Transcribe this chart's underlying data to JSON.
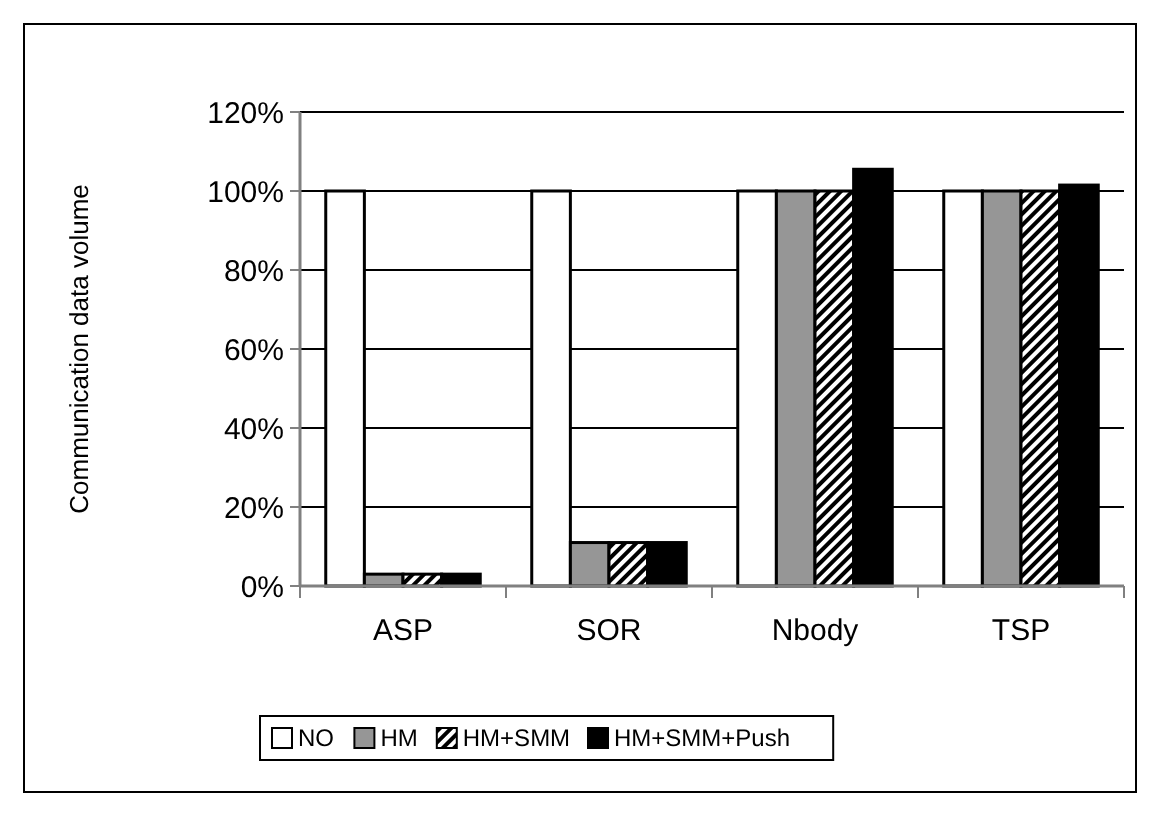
{
  "chart_data": {
    "type": "bar",
    "ylabel": "Communication data volume",
    "categories": [
      "ASP",
      "SOR",
      "Nbody",
      "TSP"
    ],
    "series": [
      {
        "name": "NO",
        "color": "#ffffff",
        "values": [
          100,
          100,
          100,
          100
        ]
      },
      {
        "name": "HM",
        "color": "#969696",
        "values": [
          3,
          11,
          100,
          100
        ]
      },
      {
        "name": "HM+SMM",
        "color": "#000000",
        "values": [
          3,
          11,
          100,
          100
        ]
      },
      {
        "name": "HM+SMM+Push",
        "color": "#000000",
        "values": [
          3,
          11,
          105.5,
          101.5
        ]
      }
    ],
    "ylim": [
      0,
      120
    ],
    "yticks": [
      {
        "value": 0,
        "label": "0%"
      },
      {
        "value": 20,
        "label": "20%"
      },
      {
        "value": 40,
        "label": "40%"
      },
      {
        "value": 60,
        "label": "60%"
      },
      {
        "value": 80,
        "label": "80%"
      },
      {
        "value": 100,
        "label": "100%"
      },
      {
        "value": 120,
        "label": "120%"
      }
    ],
    "grid": "y",
    "legend": "bottom"
  }
}
